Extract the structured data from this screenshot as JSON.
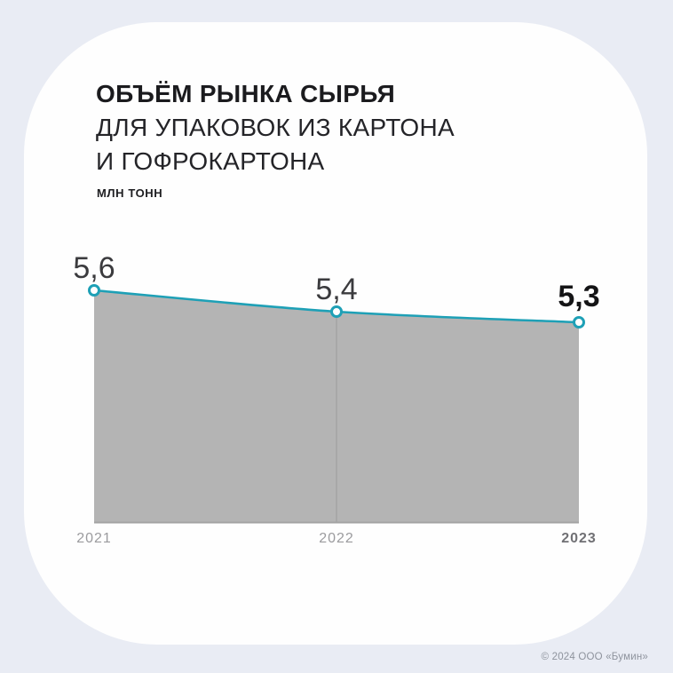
{
  "header": {
    "title_line1": "ОБЪЁМ РЫНКА СЫРЬЯ",
    "title_line2": "ДЛЯ УПАКОВОК ИЗ КАРТОНА",
    "title_line3": "И ГОФРОКАРТОНА",
    "units_label": "МЛН ТОНН"
  },
  "chart_data": {
    "type": "area",
    "title": "ОБЪЁМ РЫНКА СЫРЬЯ ДЛЯ УПАКОВОК ИЗ КАРТОНА И ГОФРОКАРТОНА",
    "ylabel": "МЛН ТОНН",
    "xlabel": "",
    "categories": [
      "2021",
      "2022",
      "2023"
    ],
    "values": [
      5.6,
      5.4,
      5.3
    ],
    "value_labels": [
      "5,6",
      "5,4",
      "5,3"
    ],
    "highlight_last": true,
    "grid": false,
    "legend": "none",
    "colors": {
      "line": "#1EA0B6",
      "area_fill": "#B4B4B4",
      "marker_fill": "#FFFFFF",
      "divider": "#9D9D9D",
      "baseline": "#A3A3A3"
    }
  },
  "footer": {
    "copyright": "© 2024 ООО «Бумин»"
  }
}
